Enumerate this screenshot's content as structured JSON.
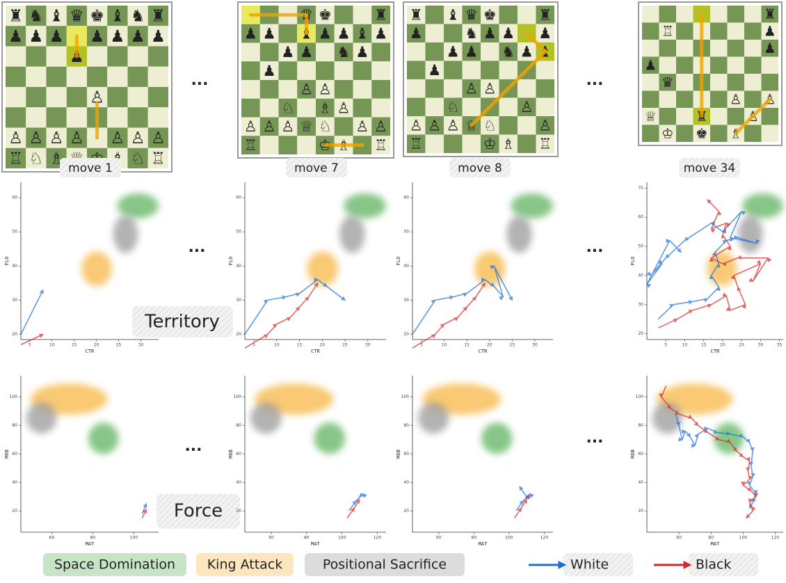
{
  "columns": [
    {
      "label": "move 1",
      "board": [
        [
          "♜",
          "♞",
          "♝",
          "♛",
          "♚",
          "♝",
          "♞",
          "♜"
        ],
        [
          "♟",
          "♟",
          "♟",
          null,
          "♟",
          "♟",
          "♟",
          "♟"
        ],
        [
          null,
          null,
          null,
          "♟",
          null,
          null,
          null,
          null
        ],
        [
          null,
          null,
          null,
          null,
          null,
          null,
          null,
          null
        ],
        [
          null,
          null,
          null,
          null,
          "♙",
          null,
          null,
          null
        ],
        [
          null,
          null,
          null,
          null,
          null,
          null,
          null,
          null
        ],
        [
          "♙",
          "♙",
          "♙",
          "♙",
          null,
          "♙",
          "♙",
          "♙"
        ],
        [
          "♖",
          "♘",
          "♗",
          "♕",
          "♔",
          "♗",
          "♘",
          "♖"
        ]
      ],
      "territory": {
        "xlim": [
          3,
          34
        ],
        "ylim": [
          18.5,
          64.5
        ],
        "xticks": [
          5,
          10,
          15,
          20,
          25,
          30
        ],
        "yticks": [
          20,
          30,
          40,
          50,
          60
        ],
        "white": {
          "x": [
            3,
            8
          ],
          "y": [
            20,
            33
          ]
        },
        "black": {
          "x": [
            3,
            8
          ],
          "y": [
            17,
            20
          ]
        }
      },
      "force": {
        "xlim": [
          45,
          112
        ],
        "ylim": [
          5,
          115
        ],
        "xticks": [
          60,
          80,
          100
        ],
        "yticks": [
          20,
          40,
          60,
          80,
          100
        ],
        "white": {
          "x": [
            104,
            106
          ],
          "y": [
            18,
            25
          ]
        },
        "black": {
          "x": [
            104,
            106
          ],
          "y": [
            15,
            21
          ]
        }
      }
    },
    {
      "label": "move 7",
      "board": [
        [
          null,
          null,
          null,
          "♛",
          "♚",
          null,
          null,
          "♜"
        ],
        [
          "♟",
          "♟",
          null,
          "♝",
          "♟",
          "♟",
          "♝",
          "♟"
        ],
        [
          null,
          null,
          "♟",
          "♟",
          null,
          "♞",
          "♟",
          null
        ],
        [
          null,
          "♟",
          null,
          null,
          null,
          null,
          null,
          null
        ],
        [
          null,
          null,
          null,
          "♙",
          "♙",
          null,
          null,
          null
        ],
        [
          null,
          null,
          "♘",
          null,
          "♗",
          "♙",
          null,
          null
        ],
        [
          "♙",
          "♙",
          "♙",
          "♕",
          "♘",
          null,
          "♙",
          "♙"
        ],
        [
          "♖",
          null,
          null,
          null,
          "♔",
          "♗",
          null,
          "♖"
        ]
      ],
      "territory": {
        "xlim": [
          3,
          34
        ],
        "ylim": [
          18.5,
          64.5
        ],
        "xticks": [
          5,
          10,
          15,
          20,
          25,
          30
        ],
        "yticks": [
          20,
          30,
          40,
          50,
          60
        ],
        "white": {
          "x": [
            3,
            8,
            12,
            15,
            19,
            21,
            25
          ],
          "y": [
            20,
            30,
            31,
            32,
            36,
            34,
            30
          ]
        },
        "black": {
          "x": [
            3,
            8,
            10,
            13,
            15,
            17,
            19
          ],
          "y": [
            16,
            20,
            23,
            25,
            28,
            31,
            35
          ]
        }
      },
      "force": {
        "xlim": [
          45,
          125
        ],
        "ylim": [
          5,
          115
        ],
        "xticks": [
          60,
          80,
          100,
          120
        ],
        "yticks": [
          20,
          40,
          60,
          80,
          100
        ],
        "white": {
          "x": [
            104,
            108,
            112,
            110
          ],
          "y": [
            20,
            27,
            32,
            30
          ]
        },
        "black": {
          "x": [
            103,
            107,
            110
          ],
          "y": [
            15,
            22,
            28
          ]
        }
      }
    },
    {
      "label": "move 8",
      "board": [
        [
          "♜",
          null,
          "♝",
          "♛",
          "♚",
          null,
          null,
          "♜"
        ],
        [
          "♟",
          null,
          null,
          "♞",
          "♟",
          "♟",
          null,
          "♟"
        ],
        [
          null,
          null,
          "♟",
          "♟",
          null,
          "♞",
          "♟",
          "♝"
        ],
        [
          null,
          "♟",
          null,
          null,
          null,
          null,
          null,
          null
        ],
        [
          null,
          null,
          null,
          "♙",
          "♙",
          null,
          null,
          null
        ],
        [
          null,
          null,
          "♘",
          null,
          null,
          null,
          "♙",
          null
        ],
        [
          "♙",
          "♙",
          "♙",
          "♕",
          "♘",
          null,
          null,
          "♙"
        ],
        [
          "♖",
          null,
          null,
          null,
          "♔",
          "♗",
          null,
          "♖"
        ]
      ],
      "territory": {
        "xlim": [
          3,
          34
        ],
        "ylim": [
          18.5,
          64.5
        ],
        "xticks": [
          5,
          10,
          15,
          20,
          25,
          30
        ],
        "yticks": [
          20,
          30,
          40,
          50,
          60
        ],
        "white": {
          "x": [
            3,
            8,
            12,
            15,
            19,
            21,
            23,
            21,
            25
          ],
          "y": [
            20,
            30,
            31,
            32,
            36,
            34,
            31,
            40,
            30
          ]
        },
        "black": {
          "x": [
            3,
            8,
            10,
            13,
            15,
            17,
            19
          ],
          "y": [
            16,
            20,
            23,
            25,
            28,
            31,
            35
          ]
        }
      },
      "force": {
        "xlim": [
          45,
          125
        ],
        "ylim": [
          5,
          115
        ],
        "xticks": [
          60,
          80,
          100,
          120
        ],
        "yticks": [
          20,
          40,
          60,
          80,
          100
        ],
        "white": {
          "x": [
            104,
            108,
            112,
            110,
            106
          ],
          "y": [
            20,
            27,
            32,
            30,
            37
          ]
        },
        "black": {
          "x": [
            103,
            107,
            110,
            111
          ],
          "y": [
            15,
            22,
            28,
            31
          ]
        }
      }
    },
    {
      "label": "move 34",
      "board": [
        [
          null,
          null,
          null,
          null,
          null,
          null,
          null,
          "♜"
        ],
        [
          null,
          "♖",
          null,
          null,
          null,
          null,
          null,
          "♟"
        ],
        [
          null,
          null,
          null,
          null,
          null,
          null,
          null,
          "♟"
        ],
        [
          "♟",
          null,
          null,
          null,
          null,
          null,
          null,
          null
        ],
        [
          null,
          "♛",
          null,
          null,
          null,
          null,
          null,
          null
        ],
        [
          null,
          null,
          null,
          null,
          null,
          "♙",
          null,
          "♙"
        ],
        [
          "♕",
          null,
          null,
          "♜",
          null,
          null,
          "♙",
          null
        ],
        [
          null,
          "♔",
          null,
          "♚",
          null,
          "♗",
          null,
          null
        ]
      ],
      "territory": {
        "xlim": [
          0,
          36
        ],
        "ylim": [
          18,
          72
        ],
        "xticks": [
          5,
          10,
          15,
          20,
          25,
          30,
          35
        ],
        "yticks": [
          20,
          30,
          40,
          50,
          60,
          70
        ],
        "white": {
          "x": [
            3,
            7,
            12,
            16,
            19,
            17,
            19,
            18,
            21,
            24,
            29,
            22,
            25,
            20,
            17,
            10,
            5,
            1,
            4,
            0,
            6,
            9
          ],
          "y": [
            25,
            30,
            31,
            32,
            36,
            40,
            44,
            48,
            52,
            53,
            51,
            53,
            62,
            55,
            58,
            52,
            46,
            40,
            44,
            37,
            52,
            48
          ]
        },
        "black": {
          "x": [
            3,
            8,
            12,
            17,
            21,
            22,
            26,
            24,
            23,
            30,
            28,
            32,
            24,
            20,
            17,
            22,
            20,
            21,
            17,
            19,
            16
          ],
          "y": [
            22,
            25,
            28,
            30,
            33,
            28,
            30,
            36,
            40,
            44,
            38,
            46,
            46,
            44,
            46,
            50,
            54,
            58,
            56,
            62,
            66
          ]
        }
      },
      "force": {
        "xlim": [
          40,
          125
        ],
        "ylim": [
          5,
          115
        ],
        "xticks": [
          60,
          80,
          100,
          120
        ],
        "yticks": [
          20,
          40,
          60,
          80,
          100
        ],
        "white": {
          "x": [
            58,
            60,
            62,
            64,
            67,
            70,
            72,
            78,
            84,
            92,
            100,
            104,
            106,
            105,
            106,
            104,
            108,
            106,
            104
          ],
          "y": [
            88,
            80,
            70,
            76,
            72,
            66,
            74,
            78,
            75,
            74,
            72,
            68,
            62,
            52,
            44,
            38,
            32,
            26,
            22
          ]
        },
        "black": {
          "x": [
            52,
            49,
            55,
            60,
            68,
            72,
            78,
            85,
            92,
            96,
            100,
            104,
            103,
            104,
            100,
            105,
            108,
            104,
            106,
            102
          ],
          "y": [
            108,
            100,
            92,
            88,
            85,
            80,
            75,
            70,
            68,
            62,
            58,
            55,
            48,
            42,
            38,
            34,
            30,
            26,
            20,
            15
          ]
        }
      }
    }
  ],
  "ellipsis": "...",
  "row_labels": {
    "territory": "Territory",
    "force": "Force"
  },
  "axes": {
    "territory": {
      "x": "CTR",
      "y": "FLO"
    },
    "force": {
      "x": "MAT",
      "y": "MOB"
    }
  },
  "legend": {
    "regions": [
      {
        "name": "Space Domination",
        "color": "#5fb35f"
      },
      {
        "name": "King Attack",
        "color": "#f7b744"
      },
      {
        "name": "Positional Sacrifice",
        "color": "#9a9a9a"
      }
    ],
    "players": [
      {
        "name": "White",
        "color": "#1f6fd6"
      },
      {
        "name": "Black",
        "color": "#d62828"
      }
    ]
  }
}
